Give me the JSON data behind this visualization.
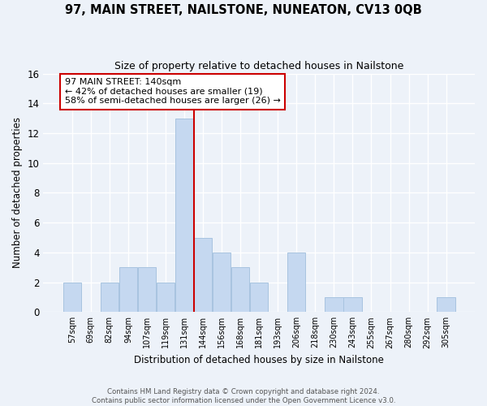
{
  "title": "97, MAIN STREET, NAILSTONE, NUNEATON, CV13 0QB",
  "subtitle": "Size of property relative to detached houses in Nailstone",
  "xlabel": "Distribution of detached houses by size in Nailstone",
  "ylabel": "Number of detached properties",
  "bin_labels": [
    "57sqm",
    "69sqm",
    "82sqm",
    "94sqm",
    "107sqm",
    "119sqm",
    "131sqm",
    "144sqm",
    "156sqm",
    "168sqm",
    "181sqm",
    "193sqm",
    "206sqm",
    "218sqm",
    "230sqm",
    "243sqm",
    "255sqm",
    "267sqm",
    "280sqm",
    "292sqm",
    "305sqm"
  ],
  "bar_heights": [
    2,
    0,
    2,
    3,
    3,
    2,
    13,
    5,
    4,
    3,
    2,
    0,
    4,
    0,
    1,
    1,
    0,
    0,
    0,
    0,
    1
  ],
  "bar_color": "#c5d8f0",
  "bar_edge_color": "#a8c4e0",
  "vline_x_index": 7,
  "vline_color": "#cc0000",
  "annotation_text": "97 MAIN STREET: 140sqm\n← 42% of detached houses are smaller (19)\n58% of semi-detached houses are larger (26) →",
  "annotation_box_color": "#ffffff",
  "annotation_box_edge_color": "#cc0000",
  "ylim": [
    0,
    16
  ],
  "yticks": [
    0,
    2,
    4,
    6,
    8,
    10,
    12,
    14,
    16
  ],
  "footer": "Contains HM Land Registry data © Crown copyright and database right 2024.\nContains public sector information licensed under the Open Government Licence v3.0.",
  "background_color": "#edf2f9",
  "grid_color": "#ffffff"
}
